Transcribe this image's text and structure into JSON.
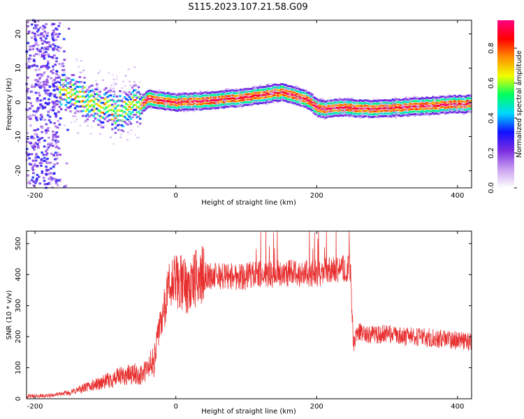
{
  "figure_title": "S115.2023.107.21.58.G09",
  "chart_data": [
    {
      "type": "heatmap",
      "xlabel": "Height of straight line (km)",
      "ylabel": "Frequency (Hz)",
      "xlim": [
        -212,
        420
      ],
      "ylim": [
        -25,
        24
      ],
      "xticks": [
        -200,
        0,
        200,
        400
      ],
      "yticks": [
        -20,
        -10,
        0,
        10,
        20
      ],
      "colorbar": {
        "label": "Normalized spectral amplitude",
        "range": [
          0,
          0.96
        ],
        "ticks": [
          "0.0",
          "0.2",
          "0.4",
          "0.6",
          "0.8"
        ],
        "colormap": [
          "#ffffff",
          "#c9a0f0",
          "#7a2de0",
          "#1010ff",
          "#00d8ff",
          "#00ff60",
          "#f0ff00",
          "#ff9000",
          "#ff0000",
          "#ff0080"
        ]
      },
      "ridge": {
        "x": [
          -160,
          -130,
          -100,
          -80,
          -60,
          -50,
          -40,
          -20,
          0,
          50,
          100,
          150,
          170,
          190,
          200,
          210,
          240,
          280,
          320,
          360,
          400,
          420
        ],
        "y": [
          4,
          1,
          -2,
          -3,
          0,
          -1,
          1,
          0.5,
          0,
          0.5,
          1.5,
          3,
          2,
          0.5,
          -1.5,
          -2,
          -1.5,
          -2,
          -1.5,
          -1,
          -0.5,
          -0.5
        ]
      }
    },
    {
      "type": "line",
      "xlabel": "Height of straight line (km)",
      "ylabel": "SNR (10 * v/v)",
      "xlim": [
        -212,
        420
      ],
      "ylim": [
        0,
        540
      ],
      "xticks": [
        -200,
        0,
        200,
        400
      ],
      "yticks": [
        0,
        100,
        200,
        300,
        400,
        500
      ],
      "color": "#e83030",
      "series": [
        {
          "x": [
            -212,
            -180,
            -150,
            -130,
            -100,
            -80,
            -60,
            -50,
            -40,
            -30,
            -25,
            -20,
            -15,
            -10,
            0,
            10,
            20,
            30,
            40,
            60,
            100,
            150,
            200,
            240,
            248,
            252,
            260,
            280,
            300,
            320,
            350,
            380,
            420
          ],
          "values": [
            8,
            10,
            20,
            35,
            55,
            70,
            80,
            75,
            95,
            130,
            210,
            260,
            310,
            350,
            380,
            370,
            360,
            390,
            395,
            395,
            395,
            405,
            405,
            420,
            420,
            180,
            215,
            205,
            210,
            200,
            200,
            190,
            185
          ]
        }
      ]
    }
  ]
}
